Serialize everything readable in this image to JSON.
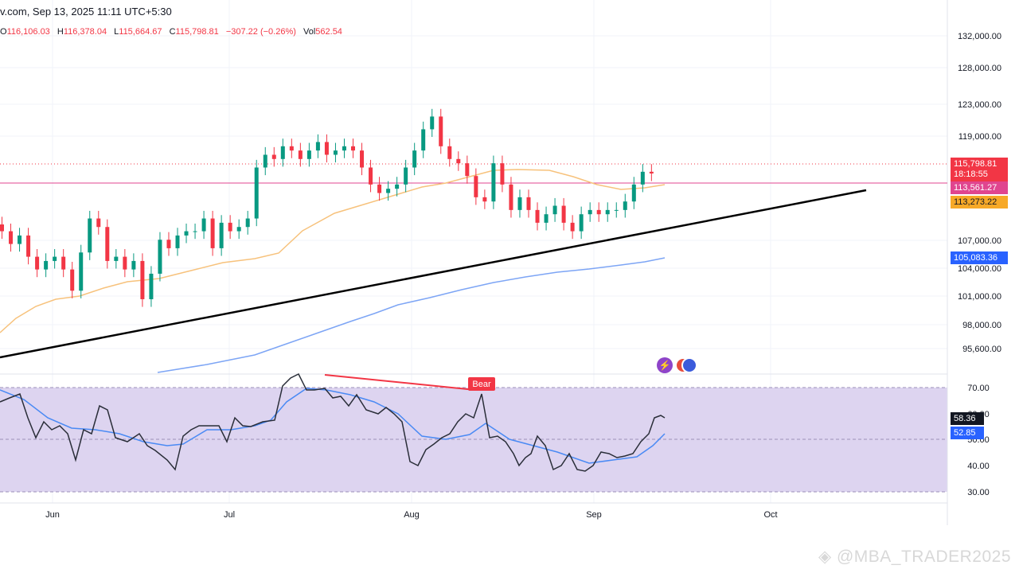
{
  "header": {
    "title_fragment": "v.com, Sep 13, 2025 11:11 UTC+5:30",
    "ohlc": [
      {
        "label": "O",
        "value": "116,106.03"
      },
      {
        "label": "H",
        "value": "116,378.04"
      },
      {
        "label": "L",
        "value": "115,664.67"
      },
      {
        "label": "C",
        "value": "115,798.81"
      },
      {
        "label": "",
        "value": "−307.22 (−0.26%)"
      },
      {
        "label": "Vol",
        "value": "562.54"
      }
    ]
  },
  "price_axis": {
    "ticks": [
      "132,000.00",
      "128,000.00",
      "123,000.00",
      "119,000.00",
      "107,000.00",
      "104,000.00",
      "101,000.00",
      "98,000.00",
      "95,600.00"
    ]
  },
  "price_tags": {
    "last": "115,798.81",
    "countdown": "18:18:55",
    "hline": "113,561.27",
    "ma50": "113,273.22",
    "ma200": "105,083.36"
  },
  "rsi_axis": {
    "ticks": [
      "70.00",
      "60.00",
      "50.00",
      "40.00",
      "30.00"
    ],
    "rsi_value": "58.36",
    "rsi_ma_value": "52.85",
    "divergence_label": "Bear"
  },
  "time_axis": {
    "labels": [
      "Jun",
      "Jul",
      "Aug",
      "Sep",
      "Oct"
    ]
  },
  "watermark": "@MBA_TRADER2025",
  "colors": {
    "up": "#089981",
    "down": "#f23645",
    "ma50": "#f7c27c",
    "ma200": "#7da5f5",
    "rsi_band": "#ddd4f0",
    "hline": "#e0458f",
    "rsi_ma": "#4a8af4"
  },
  "chart_data": {
    "type": "candlestick",
    "series": [
      {
        "name": "price",
        "unit": "USD",
        "values_ohlc_note": "close approximations",
        "values": [
          109000,
          107500,
          108500,
          106000,
          104500,
          105500,
          106000,
          104500,
          102000,
          106500,
          110500,
          109500,
          105500,
          106000,
          104500,
          105500,
          101000,
          104000,
          108000,
          107000,
          108500,
          109000,
          109000,
          110500,
          107000,
          110000,
          109000,
          109500,
          110500,
          116500,
          118000,
          117500,
          119000,
          118500,
          117500,
          118500,
          119500,
          118000,
          118500,
          119000,
          118500,
          116500,
          114500,
          113500,
          114000,
          114500,
          116500,
          118500,
          121000,
          122500,
          119000,
          117500,
          117000,
          115500,
          113000,
          112500,
          117000,
          114500,
          111500,
          113000,
          111500,
          110000,
          111000,
          112000,
          110000,
          109000,
          111000,
          111500,
          111000,
          111500,
          111500,
          112500,
          114500,
          116000,
          115800
        ]
      }
    ],
    "hline": 113561.27,
    "ma50_last": 113273.22,
    "ma200_last": 105083.36,
    "rsi_last": 58.36,
    "rsi_ma_last": 52.85,
    "rsi_ylim": [
      30,
      70
    ]
  }
}
